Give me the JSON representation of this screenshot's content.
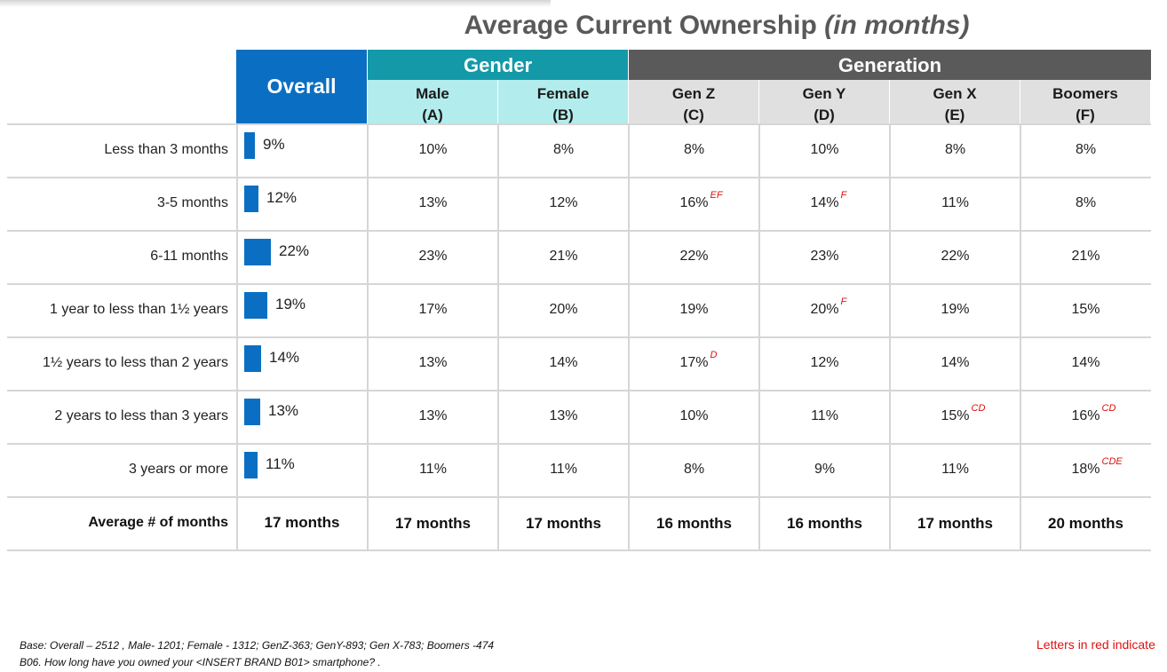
{
  "title": {
    "main": "Average Current Ownership",
    "unit": "(in months)"
  },
  "headers": {
    "overall": "Overall",
    "gender": "Gender",
    "generation": "Generation",
    "columns": [
      {
        "name": "Male",
        "letter": "(A)",
        "group": "gender"
      },
      {
        "name": "Female",
        "letter": "(B)",
        "group": "gender"
      },
      {
        "name": "Gen Z",
        "letter": "(C)",
        "group": "generation"
      },
      {
        "name": "Gen Y",
        "letter": "(D)",
        "group": "generation"
      },
      {
        "name": "Gen X",
        "letter": "(E)",
        "group": "generation"
      },
      {
        "name": "Boomers",
        "letter": "(F)",
        "group": "generation"
      }
    ]
  },
  "chart_data": {
    "type": "table",
    "title": "Average Current Ownership (in months)",
    "rows": [
      {
        "label": "Less than 3 months",
        "overall": 9,
        "overall_text": "9%",
        "cells": [
          "10%",
          "8%",
          "8%",
          "10%",
          "8%",
          "8%"
        ],
        "sig": [
          "",
          "",
          "",
          "",
          "",
          ""
        ]
      },
      {
        "label": "3-5 months",
        "overall": 12,
        "overall_text": "12%",
        "cells": [
          "13%",
          "12%",
          "16%",
          "14%",
          "11%",
          "8%"
        ],
        "sig": [
          "",
          "",
          "EF",
          "F",
          "",
          ""
        ]
      },
      {
        "label": "6-11 months",
        "overall": 22,
        "overall_text": "22%",
        "cells": [
          "23%",
          "21%",
          "22%",
          "23%",
          "22%",
          "21%"
        ],
        "sig": [
          "",
          "",
          "",
          "",
          "",
          ""
        ]
      },
      {
        "label": "1 year to less than 1½ years",
        "overall": 19,
        "overall_text": "19%",
        "cells": [
          "17%",
          "20%",
          "19%",
          "20%",
          "19%",
          "15%"
        ],
        "sig": [
          "",
          "",
          "",
          "F",
          "",
          ""
        ]
      },
      {
        "label": "1½ years to less than 2 years",
        "overall": 14,
        "overall_text": "14%",
        "cells": [
          "13%",
          "14%",
          "17%",
          "12%",
          "14%",
          "14%"
        ],
        "sig": [
          "",
          "",
          "D",
          "",
          "",
          ""
        ]
      },
      {
        "label": "2 years to less than 3 years",
        "overall": 13,
        "overall_text": "13%",
        "cells": [
          "13%",
          "13%",
          "10%",
          "11%",
          "15%",
          "16%"
        ],
        "sig": [
          "",
          "",
          "",
          "",
          "CD",
          "CD"
        ]
      },
      {
        "label": "3 years or more",
        "overall": 11,
        "overall_text": "11%",
        "cells": [
          "11%",
          "11%",
          "8%",
          "9%",
          "11%",
          "18%"
        ],
        "sig": [
          "",
          "",
          "",
          "",
          "",
          "CDE"
        ]
      }
    ],
    "summary": {
      "label": "Average # of months",
      "overall": "17 months",
      "cells": [
        "17 months",
        "17 months",
        "16 months",
        "16 months",
        "17 months",
        "20 months"
      ]
    },
    "bar_color": "#0a6fc2"
  },
  "footer": {
    "base": "Base: Overall – 2512 , Male- 1201; Female - 1312; GenZ-363; GenY-893; Gen X-783; Boomers -474",
    "question": "B06. How long have you owned your <INSERT BRAND B01> smartphone? .",
    "note": "Letters in red indicate"
  },
  "colors": {
    "overall_header": "#0a6fc2",
    "gender_header": "#1499a8",
    "gender_subheader": "#b3ecec",
    "generation_header": "#5a5a5a",
    "generation_subheader": "#e0e0e0",
    "significance": "#e01010"
  }
}
